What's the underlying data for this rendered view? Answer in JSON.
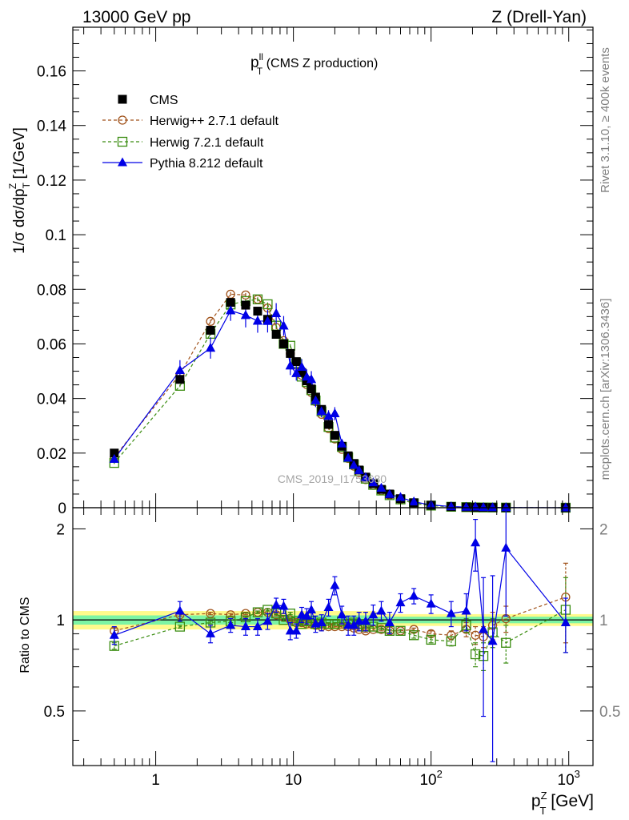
{
  "header": {
    "left": "13000 GeV pp",
    "right": "Z (Drell-Yan)"
  },
  "plot_title": {
    "main": "p",
    "sup": "ll",
    "sub": "T",
    "rest": " (CMS Z production)"
  },
  "ylabel_main": "1/σ dσ/dp",
  "ylabel_sup": "Z",
  "ylabel_sub": "T",
  "ylabel_unit": " [1/GeV]",
  "ratio_ylabel": "Ratio to CMS",
  "xlabel": {
    "main": "p",
    "sup": "Z",
    "sub": "T",
    "unit": " [GeV]"
  },
  "watermark": "CMS_2019_I1753680",
  "side_text_1": "Rivet 3.1.10, ≥ 400k events",
  "side_text_2": "mcplots.cern.ch [arXiv:1306.3436]",
  "colors": {
    "cms": "#000000",
    "herwigpp": "#a0521a",
    "herwig7": "#3a8c10",
    "pythia": "#0000e6",
    "band_yellow": "#fffa8c",
    "band_green": "#7cf4a4"
  },
  "chart_data": {
    "type": "scatter",
    "x_scale": "log",
    "xlim": [
      0.25,
      1500
    ],
    "ylim": [
      0,
      0.176
    ],
    "ratio_ylim": [
      0.33,
      2.35
    ],
    "y_ticks": [
      0,
      0.02,
      0.04,
      0.06,
      0.08,
      0.1,
      0.12,
      0.14,
      0.16
    ],
    "y_tick_labels": [
      "0",
      "0.02",
      "0.04",
      "0.06",
      "0.08",
      "0.1",
      "0.12",
      "0.14",
      "0.16"
    ],
    "ratio_ticks": [
      0.5,
      1,
      2
    ],
    "ratio_tick_labels": [
      "0.5",
      "1",
      "2"
    ],
    "x_tick_labels": [
      {
        "v": 1,
        "text": "1"
      },
      {
        "v": 10,
        "text": "10"
      },
      {
        "v": 100,
        "base": "10",
        "exp": "2"
      },
      {
        "v": 1000,
        "base": "10",
        "exp": "3"
      }
    ],
    "x": [
      0.5,
      1.5,
      2.5,
      3.5,
      4.5,
      5.5,
      6.5,
      7.5,
      8.5,
      9.5,
      10.5,
      11.5,
      12.5,
      13.5,
      14.5,
      16,
      18,
      20,
      22.5,
      25,
      27.5,
      30,
      33.5,
      38,
      43.5,
      50,
      60,
      75,
      100,
      140,
      180,
      210,
      240,
      280,
      350,
      950
    ],
    "cms": [
      0.02,
      0.047,
      0.065,
      0.0752,
      0.0742,
      0.072,
      0.069,
      0.0635,
      0.06,
      0.0565,
      0.0535,
      0.0495,
      0.0465,
      0.0435,
      0.0405,
      0.036,
      0.0305,
      0.0265,
      0.0225,
      0.019,
      0.0162,
      0.0138,
      0.0112,
      0.0088,
      0.0067,
      0.005,
      0.0033,
      0.0018,
      0.0009,
      0.0004,
      0.00022,
      0.00016,
      0.00013,
      9e-05,
      5e-05,
      6e-06
    ],
    "legend": [
      {
        "name": "CMS",
        "key": "cms"
      },
      {
        "name": "Herwig++ 2.7.1 default",
        "key": "herwigpp"
      },
      {
        "name": "Herwig 7.2.1 default",
        "key": "herwig7"
      },
      {
        "name": "Pythia 8.212 default",
        "key": "pythia"
      }
    ],
    "series": [
      {
        "name": "Herwig++ 2.7.1 default",
        "key": "herwigpp",
        "marker": "circle",
        "line": "dashed",
        "ratio": [
          0.92,
          1.04,
          1.05,
          1.04,
          1.05,
          1.06,
          1.06,
          1.04,
          1.02,
          1.0,
          0.98,
          0.98,
          0.97,
          0.97,
          0.96,
          0.95,
          0.95,
          0.95,
          0.95,
          0.95,
          0.94,
          0.93,
          0.92,
          0.93,
          0.93,
          0.92,
          0.92,
          0.93,
          0.9,
          0.89,
          0.93,
          0.89,
          0.88,
          0.96,
          1.01,
          1.19
        ],
        "ratio_err": [
          0.02,
          0.01,
          0.01,
          0.01,
          0.01,
          0.01,
          0.01,
          0.01,
          0.01,
          0.01,
          0.01,
          0.01,
          0.01,
          0.01,
          0.01,
          0.01,
          0.01,
          0.01,
          0.01,
          0.01,
          0.01,
          0.01,
          0.01,
          0.01,
          0.01,
          0.01,
          0.01,
          0.01,
          0.02,
          0.03,
          0.05,
          0.06,
          0.07,
          0.1,
          0.1,
          0.35
        ]
      },
      {
        "name": "Herwig 7.2.1 default",
        "key": "herwig7",
        "marker": "square",
        "line": "dashed",
        "ratio": [
          0.82,
          0.95,
          0.98,
          0.99,
          1.02,
          1.06,
          1.08,
          1.05,
          1.0,
          1.05,
          0.99,
          0.97,
          0.99,
          0.99,
          0.97,
          0.98,
          0.97,
          0.97,
          0.99,
          0.97,
          0.98,
          0.97,
          0.95,
          0.95,
          0.94,
          0.92,
          0.92,
          0.89,
          0.86,
          0.85,
          0.96,
          0.77,
          0.76,
          0.91,
          0.84,
          1.08
        ],
        "ratio_err": [
          0.02,
          0.01,
          0.01,
          0.01,
          0.01,
          0.01,
          0.01,
          0.01,
          0.01,
          0.01,
          0.01,
          0.01,
          0.01,
          0.01,
          0.01,
          0.01,
          0.01,
          0.01,
          0.01,
          0.01,
          0.01,
          0.01,
          0.01,
          0.01,
          0.01,
          0.01,
          0.01,
          0.02,
          0.02,
          0.03,
          0.05,
          0.07,
          0.08,
          0.1,
          0.12,
          0.3
        ]
      },
      {
        "name": "Pythia 8.212 default",
        "key": "pythia",
        "marker": "triangle",
        "line": "solid",
        "ratio": [
          0.89,
          1.07,
          0.9,
          0.96,
          0.95,
          0.95,
          0.99,
          1.12,
          1.11,
          0.92,
          0.92,
          1.04,
          1.03,
          1.08,
          0.97,
          0.98,
          1.1,
          1.3,
          1.04,
          0.96,
          0.96,
          0.99,
          0.99,
          1.04,
          1.07,
          0.98,
          1.14,
          1.2,
          1.13,
          1.05,
          1.07,
          1.8,
          0.93,
          0.85,
          1.73,
          0.98
        ],
        "ratio_err": [
          0.06,
          0.08,
          0.06,
          0.05,
          0.06,
          0.06,
          0.06,
          0.06,
          0.06,
          0.06,
          0.05,
          0.06,
          0.06,
          0.07,
          0.06,
          0.06,
          0.07,
          0.09,
          0.07,
          0.07,
          0.07,
          0.07,
          0.07,
          0.08,
          0.08,
          0.08,
          0.08,
          0.07,
          0.08,
          0.1,
          0.15,
          0.35,
          0.45,
          0.55,
          0.7,
          0.2
        ]
      }
    ],
    "uncertainty_band": {
      "inner_low": [
        0.965,
        0.965,
        0.975,
        0.975,
        0.94
      ],
      "inner_high": [
        1.035,
        1.035,
        1.025,
        1.025,
        1.06
      ],
      "outer_low": [
        0.93,
        0.93,
        0.955,
        0.955,
        0.9
      ],
      "outer_high": [
        1.07,
        1.07,
        1.045,
        1.045,
        1.11
      ],
      "x_edges": [
        0.25,
        10,
        40,
        600,
        1500
      ]
    }
  }
}
